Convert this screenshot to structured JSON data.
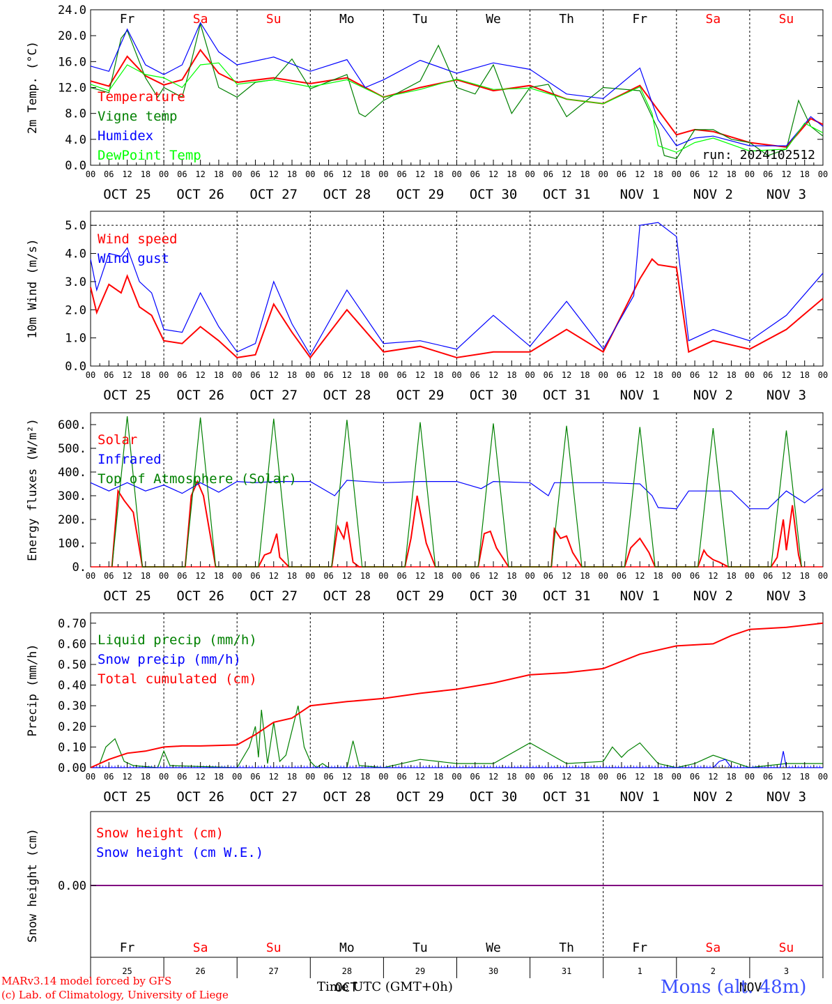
{
  "day_labels": [
    "Fr",
    "Sa",
    "Su",
    "Mo",
    "Tu",
    "We",
    "Th",
    "Fr",
    "Sa",
    "Su"
  ],
  "weekend_days": [
    "Sa",
    "Su"
  ],
  "hour_ticks": [
    "00",
    "06",
    "12",
    "18"
  ],
  "date_labels": [
    "OCT 25",
    "OCT 26",
    "OCT 27",
    "OCT 28",
    "OCT 29",
    "OCT 30",
    "OCT 31",
    "NOV  1",
    "NOV  2",
    "NOV  3"
  ],
  "bottom_day_numbers": [
    "25",
    "26",
    "27",
    "28",
    "29",
    "30",
    "31",
    "1",
    "2",
    "3"
  ],
  "bottom_month_labels": [
    "OCT",
    "NOV"
  ],
  "x_axis_title": "Time UTC (GMT+0h)",
  "footer": {
    "model": "MARv3.14 model forced by GFS",
    "credit": "(c) Lab. of Climatology, University of Liege",
    "station": "Mons (alt. 48m)"
  },
  "colors": {
    "red": "#ff0000",
    "green": "#008000",
    "blue": "#0000ff",
    "lightgreen": "#00ff00",
    "purple": "#800080",
    "weekday": "#000000",
    "weekend": "#ff0000",
    "station": "#3b4fff"
  },
  "chart_data": [
    {
      "type": "line",
      "ylabel": "2m Temp. (°C)",
      "ylim": [
        0,
        24
      ],
      "yticks": [
        "0.0",
        "4.0",
        "8.0",
        "12.0",
        "16.0",
        "20.0",
        "24.0"
      ],
      "run_label": "run: 2024102512",
      "x_unit": "hours since Oct 25 00 UTC",
      "series": [
        {
          "name": "Temperature",
          "color": "red",
          "x": [
            0,
            6,
            12,
            18,
            24,
            30,
            36,
            42,
            48,
            60,
            72,
            84,
            96,
            108,
            120,
            132,
            144,
            156,
            168,
            180,
            186,
            192,
            198,
            204,
            216,
            228,
            236,
            240
          ],
          "values": [
            13,
            12.2,
            16.8,
            13.8,
            12.4,
            13.2,
            17.8,
            14.2,
            12.8,
            13.5,
            12.6,
            13.5,
            10.5,
            12,
            13.2,
            11.5,
            12.3,
            10.2,
            9.5,
            12.3,
            8.5,
            4.7,
            5.5,
            5.2,
            3.5,
            2.8,
            7.2,
            6.3
          ]
        },
        {
          "name": "Vigne temp",
          "color": "green",
          "x": [
            0,
            6,
            10,
            12,
            18,
            22,
            24,
            30,
            32,
            36,
            42,
            48,
            54,
            60,
            66,
            72,
            84,
            88,
            90,
            96,
            108,
            114,
            120,
            126,
            132,
            138,
            144,
            150,
            156,
            168,
            180,
            186,
            188,
            192,
            198,
            204,
            210,
            216,
            222,
            228,
            232,
            236,
            240
          ],
          "values": [
            12,
            11.2,
            19.6,
            20.8,
            13.5,
            10.5,
            12,
            10.5,
            14,
            21.8,
            12,
            10.5,
            12.8,
            13.2,
            16.4,
            11.8,
            14,
            8,
            7.5,
            10,
            13,
            18.5,
            12,
            11,
            15.5,
            8,
            12,
            12.5,
            7.5,
            12,
            11.5,
            5.5,
            1.5,
            1,
            5.5,
            5.5,
            4,
            3.5,
            1.5,
            2.5,
            10,
            6,
            4.5
          ]
        },
        {
          "name": "Humidex",
          "color": "blue",
          "x": [
            0,
            6,
            12,
            18,
            24,
            30,
            36,
            42,
            48,
            60,
            72,
            84,
            90,
            96,
            108,
            120,
            132,
            144,
            156,
            168,
            180,
            186,
            192,
            198,
            204,
            216,
            228,
            236,
            240
          ],
          "values": [
            15.3,
            14.5,
            21,
            15.5,
            14,
            15.5,
            22,
            17.5,
            15.5,
            16.7,
            14.5,
            16.3,
            12,
            13.2,
            16.2,
            14.2,
            15.8,
            14.8,
            11,
            10.3,
            15,
            7,
            3,
            4.2,
            4.5,
            3,
            3,
            7.5,
            6
          ]
        },
        {
          "name": "DewPoint Temp",
          "color": "lightgreen",
          "x": [
            0,
            6,
            12,
            18,
            24,
            30,
            36,
            42,
            48,
            60,
            72,
            84,
            96,
            108,
            120,
            132,
            144,
            156,
            168,
            180,
            184,
            186,
            192,
            198,
            204,
            216,
            228,
            234,
            240
          ],
          "values": [
            12.5,
            11.5,
            15.5,
            14,
            13.5,
            12,
            15.5,
            15.8,
            12.5,
            13.2,
            12.1,
            13.2,
            10.5,
            11.7,
            13.3,
            11.7,
            11.9,
            10.2,
            9.5,
            12.1,
            8,
            3,
            2,
            3.5,
            4.2,
            2.2,
            2.5,
            6.5,
            5
          ]
        }
      ]
    },
    {
      "type": "line",
      "ylabel": "10m Wind (m/s)",
      "ylim": [
        0,
        5.5
      ],
      "yticks": [
        "0.0",
        "1.0",
        "2.0",
        "3.0",
        "4.0",
        "5.0"
      ],
      "series": [
        {
          "name": "Wind speed",
          "color": "red",
          "x": [
            0,
            2,
            6,
            10,
            12,
            16,
            20,
            24,
            30,
            36,
            42,
            48,
            54,
            60,
            66,
            72,
            84,
            96,
            108,
            120,
            132,
            144,
            156,
            168,
            180,
            184,
            186,
            192,
            196,
            204,
            216,
            228,
            240
          ],
          "values": [
            2.8,
            1.9,
            2.9,
            2.6,
            3.2,
            2.1,
            1.8,
            0.9,
            0.8,
            1.4,
            0.9,
            0.3,
            0.4,
            2.2,
            1.2,
            0.3,
            2.0,
            0.5,
            0.7,
            0.3,
            0.5,
            0.5,
            1.3,
            0.5,
            3.1,
            3.8,
            3.6,
            3.5,
            0.5,
            0.9,
            0.6,
            1.3,
            2.4
          ]
        },
        {
          "name": "Wind gust",
          "color": "blue",
          "x": [
            0,
            2,
            6,
            10,
            12,
            16,
            20,
            24,
            30,
            36,
            42,
            48,
            54,
            60,
            66,
            72,
            84,
            96,
            108,
            120,
            132,
            144,
            156,
            168,
            178,
            180,
            186,
            192,
            196,
            204,
            216,
            228,
            240
          ],
          "values": [
            3.8,
            2.7,
            4.0,
            3.9,
            4.2,
            3.0,
            2.6,
            1.3,
            1.2,
            2.6,
            1.4,
            0.5,
            0.8,
            3.0,
            1.5,
            0.4,
            2.7,
            0.8,
            0.9,
            0.6,
            1.8,
            0.7,
            2.3,
            0.6,
            2.5,
            5.0,
            5.1,
            4.6,
            0.9,
            1.3,
            0.9,
            1.8,
            3.3
          ]
        }
      ]
    },
    {
      "type": "line",
      "ylabel": "Energy fluxes (W/m²)",
      "ylim": [
        0,
        650
      ],
      "yticks": [
        "0.",
        "100.",
        "200.",
        "300.",
        "400.",
        "500.",
        "600."
      ],
      "series": [
        {
          "name": "Solar",
          "color": "red",
          "x": [
            7,
            9,
            11,
            14,
            17,
            31,
            33,
            35,
            37,
            41,
            55,
            57,
            59,
            61,
            62,
            65,
            79,
            81,
            83,
            84,
            86,
            88,
            103,
            105,
            107,
            110,
            113,
            127,
            129,
            131,
            133,
            137,
            151,
            152,
            154,
            156,
            158,
            161,
            175,
            177,
            180,
            183,
            185,
            199,
            201,
            202,
            204,
            206,
            209,
            223,
            225,
            227,
            228,
            230,
            232,
            233
          ],
          "values": [
            0,
            320,
            280,
            230,
            0,
            0,
            300,
            360,
            300,
            0,
            0,
            50,
            60,
            140,
            40,
            0,
            0,
            170,
            120,
            190,
            20,
            0,
            0,
            120,
            300,
            100,
            0,
            0,
            140,
            150,
            80,
            0,
            0,
            160,
            120,
            130,
            60,
            0,
            0,
            80,
            120,
            60,
            0,
            0,
            70,
            50,
            30,
            20,
            0,
            0,
            40,
            200,
            70,
            260,
            50,
            0
          ]
        },
        {
          "name": "Infrared",
          "color": "blue",
          "x": [
            0,
            6,
            12,
            18,
            24,
            30,
            36,
            42,
            48,
            54,
            60,
            72,
            80,
            84,
            96,
            108,
            120,
            128,
            132,
            144,
            150,
            152,
            156,
            168,
            180,
            184,
            186,
            192,
            196,
            204,
            210,
            216,
            222,
            228,
            234,
            240
          ],
          "values": [
            355,
            320,
            355,
            320,
            345,
            310,
            355,
            315,
            360,
            355,
            360,
            360,
            300,
            365,
            355,
            360,
            360,
            330,
            360,
            355,
            300,
            355,
            355,
            355,
            350,
            300,
            250,
            245,
            320,
            320,
            320,
            245,
            245,
            320,
            270,
            330
          ]
        },
        {
          "name": "Top of Atmosphere (Solar)",
          "color": "green",
          "x": [
            7,
            12,
            17,
            31,
            36,
            41,
            55,
            60,
            65,
            79,
            84,
            89,
            103,
            108,
            113,
            127,
            132,
            137,
            151,
            156,
            161,
            175,
            180,
            185,
            199,
            204,
            209,
            223,
            228,
            233
          ],
          "values": [
            0,
            635,
            0,
            0,
            630,
            0,
            0,
            625,
            0,
            0,
            620,
            0,
            0,
            610,
            0,
            0,
            605,
            0,
            0,
            595,
            0,
            0,
            590,
            0,
            0,
            585,
            0,
            0,
            575,
            0
          ]
        }
      ]
    },
    {
      "type": "line",
      "ylabel": "Precip (mm/h)",
      "ylim": [
        0,
        0.75
      ],
      "yticks": [
        "0.00",
        "0.10",
        "0.20",
        "0.30",
        "0.40",
        "0.50",
        "0.60",
        "0.70"
      ],
      "series": [
        {
          "name": "Liquid precip (mm/h)",
          "color": "green",
          "x": [
            0,
            3,
            5,
            8,
            11,
            14,
            22,
            24,
            26,
            48,
            52,
            54,
            55,
            56,
            58,
            60,
            62,
            64,
            68,
            70,
            72,
            74,
            76,
            78,
            84,
            86,
            88,
            96,
            108,
            120,
            132,
            144,
            156,
            168,
            171,
            174,
            176,
            180,
            186,
            192,
            198,
            204,
            210,
            216,
            228,
            240
          ],
          "values": [
            0,
            0.02,
            0.1,
            0.14,
            0.03,
            0.01,
            0,
            0.08,
            0.01,
            0,
            0.1,
            0.2,
            0.05,
            0.28,
            0.02,
            0.22,
            0.03,
            0.06,
            0.3,
            0.1,
            0.03,
            0,
            0.02,
            0,
            0,
            0.13,
            0.01,
            0,
            0.04,
            0.02,
            0.02,
            0.12,
            0.02,
            0.03,
            0.1,
            0.05,
            0.08,
            0.12,
            0.02,
            0,
            0.02,
            0.06,
            0.03,
            0,
            0.02,
            0.02
          ]
        },
        {
          "name": "Snow precip (mm/h)",
          "color": "blue",
          "x": [
            0,
            204,
            206,
            208,
            210,
            226,
            227,
            228,
            240
          ],
          "values": [
            0,
            0,
            0.03,
            0.04,
            0,
            0,
            0.08,
            0,
            0
          ]
        },
        {
          "name": "Total cumulated (cm)",
          "color": "red",
          "x": [
            0,
            6,
            12,
            18,
            24,
            30,
            36,
            48,
            54,
            60,
            66,
            72,
            84,
            96,
            108,
            120,
            132,
            144,
            156,
            168,
            180,
            192,
            204,
            210,
            216,
            228,
            240
          ],
          "values": [
            0,
            0.04,
            0.07,
            0.08,
            0.1,
            0.105,
            0.105,
            0.11,
            0.16,
            0.22,
            0.24,
            0.3,
            0.32,
            0.335,
            0.36,
            0.38,
            0.41,
            0.45,
            0.46,
            0.48,
            0.55,
            0.59,
            0.6,
            0.64,
            0.67,
            0.68,
            0.7
          ]
        }
      ]
    },
    {
      "type": "line",
      "ylabel": "Snow height (cm)",
      "ytick": "0.00",
      "series": [
        {
          "name": "Snow height (cm)",
          "color": "red",
          "x": [
            0,
            240
          ],
          "values": [
            0,
            0
          ]
        },
        {
          "name": "Snow height (cm W.E.)",
          "color": "blue",
          "x": [
            0,
            240
          ],
          "values": [
            0,
            0
          ]
        }
      ]
    }
  ]
}
